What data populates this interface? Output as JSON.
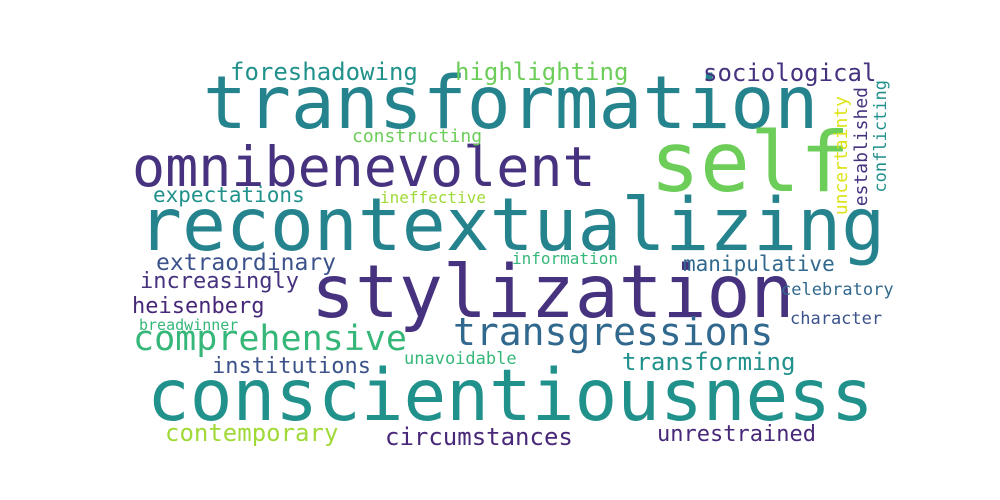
{
  "colors": {
    "green": "#6ccd59",
    "teal": "#21918c",
    "blue": "#3b528b",
    "purple": "#46327e",
    "darkpurple": "#482878",
    "cyan": "#25838e",
    "lime": "#a0da39",
    "yellow": "#dde318",
    "seagreen": "#35b779",
    "midblue": "#31688e"
  },
  "words": {
    "w01": "transformation",
    "w02": "omnibenevolent",
    "w03": "self",
    "w04": "recontextualizing",
    "w05": "stylization",
    "w06": "conscientiousness",
    "w07": "transgressions",
    "w08": "comprehensive",
    "w09": "foreshadowing",
    "w10": "highlighting",
    "w11": "sociological",
    "w12": "constructing",
    "w13": "expectations",
    "w14": "ineffective",
    "w15": "extraordinary",
    "w16": "information",
    "w17": "manipulative",
    "w18": "increasingly",
    "w19": "heisenberg",
    "w20": "celebratory",
    "w21": "breadwinner",
    "w22": "character",
    "w23": "institutions",
    "w24": "unavoidable",
    "w25": "transforming",
    "w26": "contemporary",
    "w27": "circumstances",
    "w28": "unrestrained",
    "w29": "uncertainty",
    "w30": "established",
    "w31": "conflicting"
  }
}
